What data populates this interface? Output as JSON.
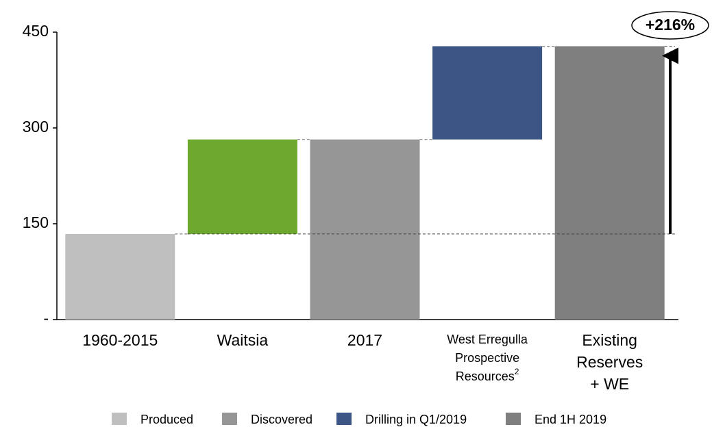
{
  "chart_data": {
    "type": "waterfall",
    "categories": [
      [
        "1960-2015"
      ],
      [
        "Waitsia"
      ],
      [
        "2017"
      ],
      [
        "West Erregulla",
        "Prospective",
        "Resources"
      ],
      [
        "Existing",
        "Reserves",
        "+ WE"
      ]
    ],
    "superscripts": {
      "3": "2"
    },
    "values": [
      134,
      148,
      282,
      146,
      428
    ],
    "measure": [
      "absolute",
      "relative",
      "total",
      "relative",
      "total"
    ],
    "colors": [
      "#bfbfbf",
      "#6ea82f",
      "#969696",
      "#3d5585",
      "#7f7f7f"
    ],
    "ylim": [
      0,
      450
    ],
    "yticks": [
      {
        "value": 0,
        "label": "-"
      },
      150,
      300,
      450
    ],
    "legend": [
      {
        "name": "Produced",
        "color": "#bfbfbf"
      },
      {
        "name": "Discovered",
        "color": "#969696"
      },
      {
        "name": "Drilling in Q1/2019",
        "color": "#3d5585"
      },
      {
        "name": "End 1H 2019",
        "color": "#7f7f7f"
      }
    ],
    "annotation": "+216%"
  }
}
